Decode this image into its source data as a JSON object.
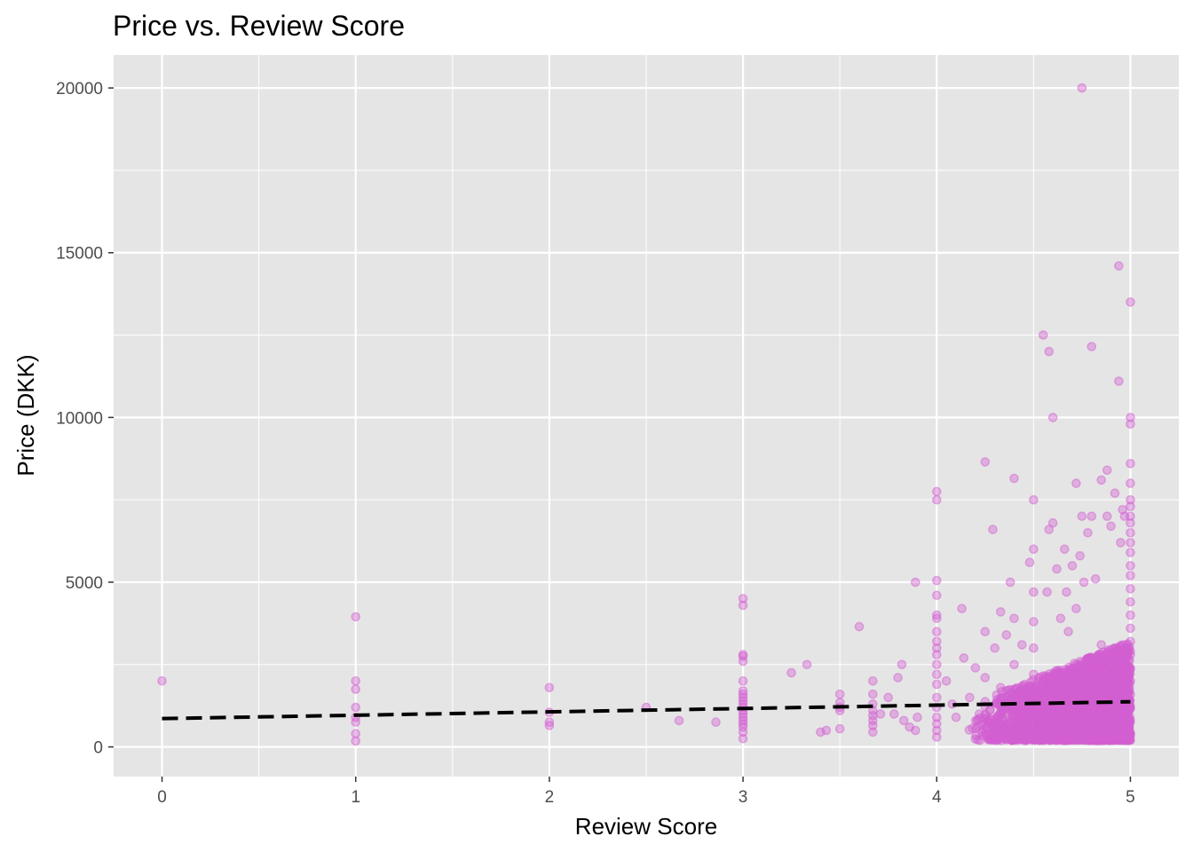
{
  "chart_data": {
    "type": "scatter",
    "title": "Price vs. Review Score",
    "xlabel": "Review Score",
    "ylabel": "Price (DKK)",
    "xlim": [
      -0.25,
      5.25
    ],
    "ylim": [
      -900,
      21000
    ],
    "x_ticks": [
      0,
      1,
      2,
      3,
      4,
      5
    ],
    "y_ticks": [
      0,
      5000,
      10000,
      15000,
      20000
    ],
    "x_tick_labels": [
      "0",
      "1",
      "2",
      "3",
      "4",
      "5"
    ],
    "y_tick_labels": [
      "0",
      "5000",
      "10000",
      "15000",
      "20000"
    ],
    "grid": true,
    "legend": "none",
    "colors": {
      "panel": "#e5e5e5",
      "grid": "#ffffff",
      "point": "#d35fd1",
      "trend": "#000000"
    },
    "trend_line": {
      "style": "dashed",
      "points": [
        [
          0,
          860
        ],
        [
          5,
          1370
        ]
      ]
    },
    "series": [
      {
        "points": [
          [
            0,
            2000
          ],
          [
            1,
            3950
          ],
          [
            1,
            2000
          ],
          [
            1,
            1750
          ],
          [
            1,
            1200
          ],
          [
            1,
            900
          ],
          [
            1,
            750
          ],
          [
            1,
            400
          ],
          [
            1,
            180
          ],
          [
            2,
            1800
          ],
          [
            2,
            1050
          ],
          [
            2,
            750
          ],
          [
            2,
            650
          ],
          [
            2.5,
            1200
          ],
          [
            2.67,
            800
          ],
          [
            2.86,
            750
          ],
          [
            3,
            4500
          ],
          [
            3,
            4300
          ],
          [
            3,
            2800
          ],
          [
            3,
            2750
          ],
          [
            3,
            2600
          ],
          [
            3,
            2000
          ],
          [
            3,
            1700
          ],
          [
            3,
            1600
          ],
          [
            3,
            1500
          ],
          [
            3,
            1400
          ],
          [
            3,
            1300
          ],
          [
            3,
            1200
          ],
          [
            3,
            1100
          ],
          [
            3,
            1000
          ],
          [
            3,
            900
          ],
          [
            3,
            800
          ],
          [
            3,
            700
          ],
          [
            3,
            600
          ],
          [
            3,
            450
          ],
          [
            3,
            250
          ],
          [
            3.25,
            2250
          ],
          [
            3.33,
            2500
          ],
          [
            3.4,
            450
          ],
          [
            3.43,
            500
          ],
          [
            3.5,
            1600
          ],
          [
            3.5,
            1350
          ],
          [
            3.5,
            1200
          ],
          [
            3.5,
            1100
          ],
          [
            3.5,
            550
          ],
          [
            3.6,
            3650
          ],
          [
            3.67,
            2000
          ],
          [
            3.67,
            1600
          ],
          [
            3.67,
            1300
          ],
          [
            3.67,
            1100
          ],
          [
            3.67,
            950
          ],
          [
            3.67,
            800
          ],
          [
            3.67,
            650
          ],
          [
            3.67,
            450
          ],
          [
            3.71,
            1000
          ],
          [
            3.75,
            1500
          ],
          [
            3.78,
            1000
          ],
          [
            3.8,
            2100
          ],
          [
            3.82,
            2500
          ],
          [
            3.83,
            800
          ],
          [
            3.86,
            600
          ],
          [
            3.89,
            5000
          ],
          [
            3.89,
            500
          ],
          [
            3.9,
            900
          ],
          [
            4,
            7750
          ],
          [
            4,
            7500
          ],
          [
            4,
            5050
          ],
          [
            4,
            4600
          ],
          [
            4,
            4000
          ],
          [
            4,
            3900
          ],
          [
            4,
            3500
          ],
          [
            4,
            3200
          ],
          [
            4,
            3000
          ],
          [
            4,
            2800
          ],
          [
            4,
            2500
          ],
          [
            4,
            2200
          ],
          [
            4,
            1900
          ],
          [
            4,
            1500
          ],
          [
            4,
            1200
          ],
          [
            4,
            900
          ],
          [
            4,
            700
          ],
          [
            4,
            500
          ],
          [
            4,
            300
          ],
          [
            4.05,
            2000
          ],
          [
            4.08,
            1300
          ],
          [
            4.1,
            900
          ],
          [
            4.13,
            4200
          ],
          [
            4.14,
            2700
          ],
          [
            4.17,
            1500
          ],
          [
            4.2,
            2400
          ],
          [
            4.22,
            1000
          ],
          [
            4.25,
            8650
          ],
          [
            4.25,
            3500
          ],
          [
            4.25,
            2100
          ],
          [
            4.29,
            6600
          ],
          [
            4.3,
            3000
          ],
          [
            4.33,
            4100
          ],
          [
            4.33,
            1800
          ],
          [
            4.36,
            3400
          ],
          [
            4.38,
            5000
          ],
          [
            4.4,
            8150
          ],
          [
            4.4,
            3900
          ],
          [
            4.4,
            2500
          ],
          [
            4.44,
            3100
          ],
          [
            4.45,
            1600
          ],
          [
            4.48,
            5600
          ],
          [
            4.5,
            7500
          ],
          [
            4.5,
            6000
          ],
          [
            4.5,
            4700
          ],
          [
            4.5,
            3800
          ],
          [
            4.5,
            3000
          ],
          [
            4.5,
            2200
          ],
          [
            4.5,
            1400
          ],
          [
            4.55,
            12500
          ],
          [
            4.57,
            4700
          ],
          [
            4.58,
            12000
          ],
          [
            4.58,
            6600
          ],
          [
            4.6,
            10000
          ],
          [
            4.6,
            6800
          ],
          [
            4.62,
            5400
          ],
          [
            4.64,
            3900
          ],
          [
            4.66,
            6000
          ],
          [
            4.67,
            4700
          ],
          [
            4.68,
            3500
          ],
          [
            4.7,
            5500
          ],
          [
            4.72,
            8000
          ],
          [
            4.72,
            4200
          ],
          [
            4.74,
            5800
          ],
          [
            4.75,
            20000
          ],
          [
            4.75,
            7000
          ],
          [
            4.76,
            5000
          ],
          [
            4.78,
            6500
          ],
          [
            4.8,
            12150
          ],
          [
            4.8,
            7000
          ],
          [
            4.82,
            5100
          ],
          [
            4.85,
            8100
          ],
          [
            4.85,
            3100
          ],
          [
            4.88,
            8400
          ],
          [
            4.88,
            7000
          ],
          [
            4.9,
            6700
          ],
          [
            4.92,
            7700
          ],
          [
            4.94,
            14600
          ],
          [
            4.94,
            11100
          ],
          [
            4.95,
            6200
          ],
          [
            4.96,
            7200
          ],
          [
            4.97,
            7000
          ],
          [
            5,
            13500
          ],
          [
            5,
            10000
          ],
          [
            5,
            9800
          ],
          [
            5,
            8600
          ],
          [
            5,
            8000
          ],
          [
            5,
            7500
          ],
          [
            5,
            7300
          ],
          [
            5,
            7000
          ],
          [
            5,
            6800
          ],
          [
            5,
            6500
          ],
          [
            5,
            6200
          ],
          [
            5,
            5900
          ],
          [
            5,
            5500
          ],
          [
            5,
            5200
          ],
          [
            5,
            4800
          ],
          [
            5,
            4400
          ],
          [
            5,
            4000
          ],
          [
            5,
            3600
          ],
          [
            5,
            3200
          ],
          [
            5,
            2800
          ],
          [
            5,
            2400
          ],
          [
            5,
            2000
          ],
          [
            5,
            1600
          ],
          [
            5,
            1200
          ],
          [
            5,
            800
          ],
          [
            5,
            400
          ],
          [
            5,
            200
          ]
        ]
      }
    ],
    "dense_region": {
      "note_for_rendering": "",
      "x_range": [
        4.0,
        5.0
      ],
      "y_range": [
        200,
        3200
      ],
      "count": 2600
    }
  }
}
